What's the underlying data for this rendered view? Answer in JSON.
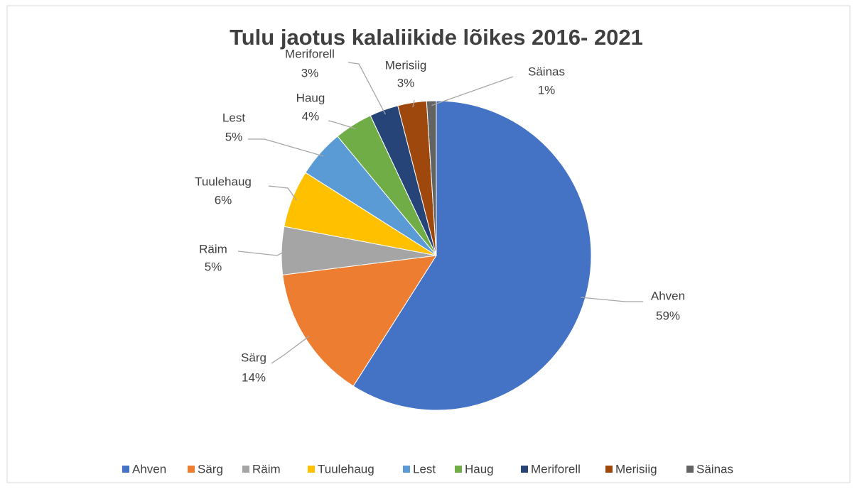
{
  "chart_data": {
    "type": "pie",
    "title": "Tulu jaotus kalaliikide lõikes 2016- 2021",
    "categories": [
      "Ahven",
      "Särg",
      "Räim",
      "Tuulehaug",
      "Lest",
      "Haug",
      "Meriforell",
      "Merisiig",
      "Säinas"
    ],
    "values": [
      59,
      14,
      5,
      6,
      5,
      4,
      3,
      3,
      1
    ],
    "value_labels": [
      "59%",
      "14%",
      "5%",
      "6%",
      "5%",
      "4%",
      "3%",
      "3%",
      "1%"
    ],
    "colors": [
      "#4472c4",
      "#ed7d31",
      "#a5a5a5",
      "#ffc000",
      "#5b9bd5",
      "#70ad47",
      "#264478",
      "#9e480e",
      "#636363"
    ],
    "legend": "bottom"
  }
}
